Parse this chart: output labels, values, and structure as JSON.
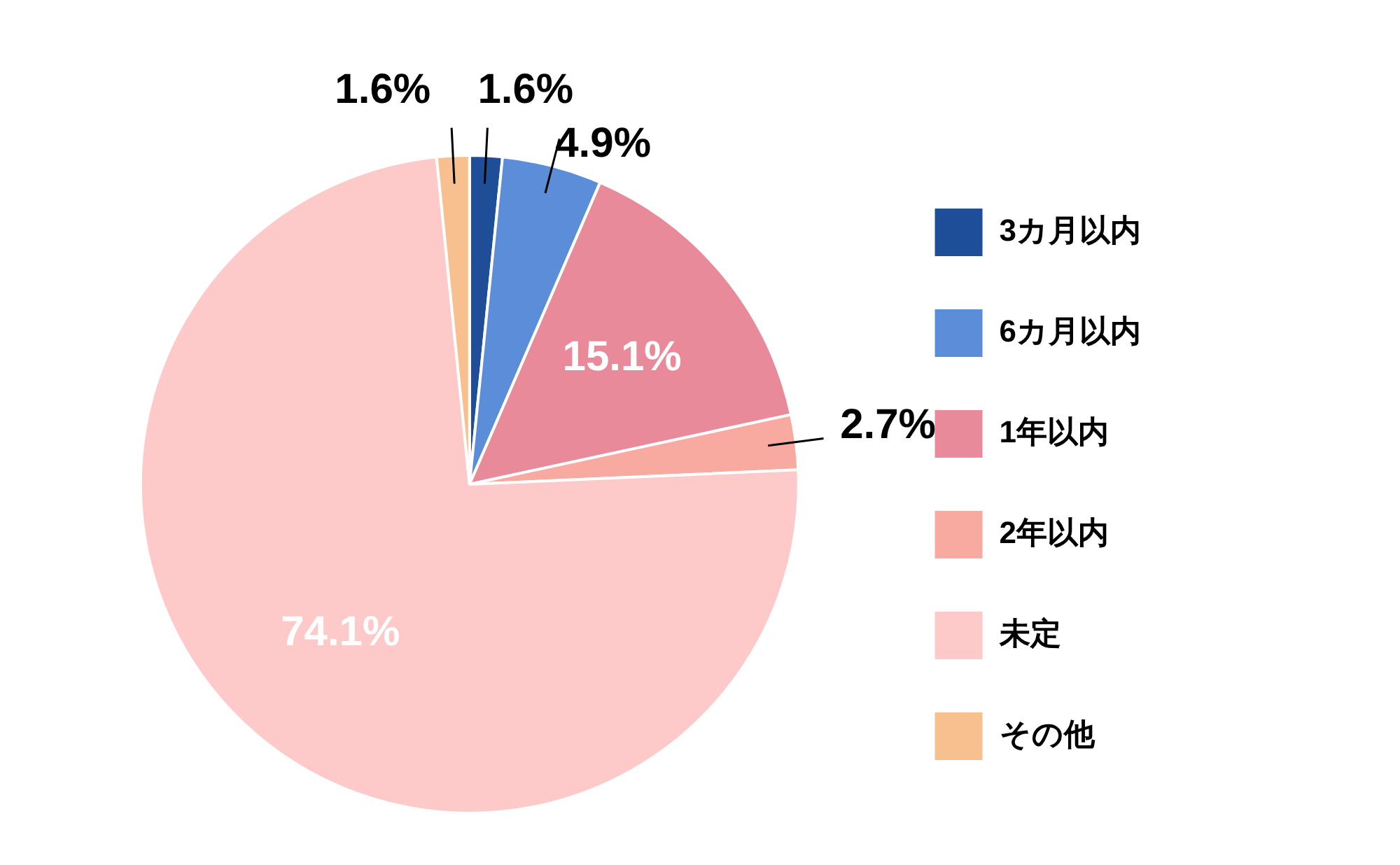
{
  "chart_data": {
    "type": "pie",
    "categories": [
      "3カ月以内",
      "6カ月以内",
      "1年以内",
      "2年以内",
      "未定",
      "その他"
    ],
    "values": [
      1.6,
      4.9,
      15.1,
      2.7,
      74.1,
      1.6
    ],
    "colors": [
      "#1f4e99",
      "#5b8dd9",
      "#e88a9a",
      "#f9aaa0",
      "#fdc9c9",
      "#f9c08f"
    ],
    "legend": "right",
    "value_labels": [
      "1.6%",
      "4.9%",
      "15.1%",
      "2.7%",
      "74.1%",
      "1.6%"
    ]
  }
}
